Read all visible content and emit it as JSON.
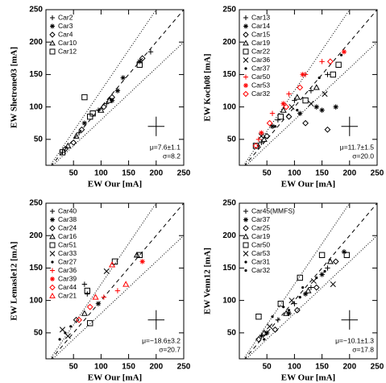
{
  "chart_data": [
    {
      "type": "scatter",
      "x_label": "EW Our [mA]",
      "y_label": "EW Shetrone03 [mA]",
      "xlim": [
        0,
        250
      ],
      "ylim": [
        10,
        250
      ],
      "xticks": [
        50,
        100,
        150,
        200,
        250
      ],
      "yticks": [
        50,
        100,
        150,
        200,
        250
      ],
      "annotations": [
        "μ=7.6±1.1",
        "σ=8.2"
      ],
      "error_bar": {
        "x": 200,
        "y": 70,
        "xerr": 15,
        "yerr": 15
      },
      "series": [
        {
          "name": "Car2",
          "color": "#000000",
          "marker": "plus",
          "x": [
            30,
            60,
            95,
            110,
            190
          ],
          "values": [
            30,
            60,
            95,
            105,
            185
          ]
        },
        {
          "name": "Car3",
          "color": "#000000",
          "marker": "asterisk",
          "x": [
            70,
            130,
            140,
            170,
            120
          ],
          "values": [
            75,
            125,
            145,
            170,
            110
          ]
        },
        {
          "name": "Car4",
          "color": "#000000",
          "marker": "diamond",
          "x": [
            35,
            50,
            65,
            105,
            120,
            175
          ],
          "values": [
            35,
            45,
            65,
            100,
            115,
            175
          ]
        },
        {
          "name": "Car10",
          "color": "#000000",
          "marker": "triangle",
          "x": [
            40,
            55,
            100,
            115
          ],
          "values": [
            40,
            55,
            95,
            110
          ]
        },
        {
          "name": "Car12",
          "color": "#000000",
          "marker": "square",
          "x": [
            70,
            80,
            85,
            170,
            30
          ],
          "values": [
            115,
            85,
            90,
            165,
            30
          ]
        }
      ]
    },
    {
      "type": "scatter",
      "x_label": "EW Our [mA]",
      "y_label": "EW Koch08 [mA]",
      "xlim": [
        0,
        250
      ],
      "ylim": [
        10,
        250
      ],
      "xticks": [
        50,
        100,
        150,
        200,
        250
      ],
      "yticks": [
        50,
        100,
        150,
        200,
        250
      ],
      "annotations": [
        "μ=11.7±1.5",
        "σ=20.0"
      ],
      "error_bar": {
        "x": 200,
        "y": 70,
        "xerr": 15,
        "yerr": 15
      },
      "series": [
        {
          "name": "Car13",
          "color": "#000000",
          "marker": "plus",
          "x": [
            40,
            70,
            100,
            130,
            160
          ],
          "values": [
            45,
            80,
            110,
            125,
            150
          ]
        },
        {
          "name": "Car14",
          "color": "#000000",
          "marker": "asterisk",
          "x": [
            60,
            110,
            140,
            150,
            175
          ],
          "values": [
            70,
            90,
            100,
            95,
            100
          ]
        },
        {
          "name": "Car15",
          "color": "#000000",
          "marker": "diamond",
          "x": [
            50,
            90,
            120,
            160
          ],
          "values": [
            55,
            85,
            75,
            65
          ]
        },
        {
          "name": "Car19",
          "color": "#000000",
          "marker": "triangle",
          "x": [
            45,
            80,
            105,
            140
          ],
          "values": [
            50,
            95,
            115,
            130
          ]
        },
        {
          "name": "Car22",
          "color": "#000000",
          "marker": "square",
          "x": [
            30,
            75,
            120,
            170,
            180
          ],
          "values": [
            40,
            85,
            110,
            150,
            165
          ]
        },
        {
          "name": "Car36",
          "color": "#000000",
          "marker": "x",
          "x": [
            40,
            95,
            130,
            155
          ],
          "values": [
            55,
            100,
            105,
            120
          ]
        },
        {
          "name": "Car37",
          "color": "#000000",
          "marker": "dot",
          "x": [
            35,
            65,
            105,
            145,
            185
          ],
          "values": [
            40,
            70,
            95,
            145,
            180
          ]
        },
        {
          "name": "Car50",
          "color": "#ff0000",
          "marker": "plus",
          "x": [
            35,
            60,
            90,
            120,
            150
          ],
          "values": [
            50,
            90,
            120,
            150,
            170
          ]
        },
        {
          "name": "Car53",
          "color": "#ff0000",
          "marker": "asterisk",
          "x": [
            40,
            80,
            115,
            190
          ],
          "values": [
            60,
            105,
            150,
            185
          ]
        },
        {
          "name": "Car32",
          "color": "#ff0000",
          "marker": "diamond",
          "x": [
            30,
            55,
            85,
            110,
            165
          ],
          "values": [
            40,
            75,
            100,
            130,
            170
          ]
        }
      ]
    },
    {
      "type": "scatter",
      "x_label": "EW Our [mA]",
      "y_label": "EW Lemasle12 [mA]",
      "xlim": [
        0,
        250
      ],
      "ylim": [
        10,
        250
      ],
      "xticks": [
        50,
        100,
        150,
        200,
        250
      ],
      "yticks": [
        50,
        100,
        150,
        200,
        250
      ],
      "annotations": [
        "μ=−18.6±3.2",
        "σ=20.7"
      ],
      "error_bar": {
        "x": 200,
        "y": 70,
        "xerr": 15,
        "yerr": 15
      },
      "series": [
        {
          "name": "Car40",
          "color": "#000000",
          "marker": "plus",
          "x": [
            70,
            75
          ],
          "values": [
            125,
            110
          ]
        },
        {
          "name": "Car38",
          "color": "#000000",
          "marker": "asterisk",
          "x": [
            95
          ],
          "values": [
            95
          ]
        },
        {
          "name": "Car24",
          "color": "#000000",
          "marker": "diamond",
          "x": [
            55
          ],
          "values": [
            70
          ]
        },
        {
          "name": "Car16",
          "color": "#000000",
          "marker": "triangle",
          "x": [
            70,
            165
          ],
          "values": [
            80,
            170
          ]
        },
        {
          "name": "Car51",
          "color": "#000000",
          "marker": "square",
          "x": [
            75,
            80,
            125,
            170
          ],
          "values": [
            115,
            65,
            160,
            170
          ]
        },
        {
          "name": "Car33",
          "color": "#000000",
          "marker": "x",
          "x": [
            30,
            40,
            110
          ],
          "values": [
            55,
            45,
            145
          ]
        },
        {
          "name": "Car27",
          "color": "#000000",
          "marker": "dot",
          "x": [
            25,
            35,
            45
          ],
          "values": [
            40,
            50,
            60
          ]
        },
        {
          "name": "Car36",
          "color": "#ff0000",
          "marker": "plus",
          "x": [
            105,
            130
          ],
          "values": [
            105,
            115
          ]
        },
        {
          "name": "Car39",
          "color": "#ff0000",
          "marker": "asterisk",
          "x": [
            175
          ],
          "values": [
            160
          ]
        },
        {
          "name": "Car44",
          "color": "#ff0000",
          "marker": "diamond",
          "x": [
            60,
            80
          ],
          "values": [
            70,
            90
          ]
        },
        {
          "name": "Car21",
          "color": "#ff0000",
          "marker": "triangle",
          "x": [
            90,
            120,
            145
          ],
          "values": [
            105,
            155,
            125
          ]
        }
      ]
    },
    {
      "type": "scatter",
      "x_label": "EW Our [mA]",
      "y_label": "EW Venn12 [mA]",
      "xlim": [
        0,
        250
      ],
      "ylim": [
        10,
        250
      ],
      "xticks": [
        50,
        100,
        150,
        200,
        250
      ],
      "yticks": [
        50,
        100,
        150,
        200,
        250
      ],
      "annotations": [
        "μ=−10.1±1.3",
        "σ=17.8"
      ],
      "error_bar": {
        "x": 200,
        "y": 70,
        "xerr": 15,
        "yerr": 15
      },
      "series": [
        {
          "name": "Car45(MMFS)",
          "color": "#000000",
          "marker": "plus",
          "x": [
            40,
            70,
            100,
            130,
            160
          ],
          "values": [
            45,
            70,
            95,
            120,
            150
          ]
        },
        {
          "name": "Car37",
          "color": "#000000",
          "marker": "asterisk",
          "x": [
            50,
            90,
            120,
            150,
            190
          ],
          "values": [
            50,
            80,
            110,
            140,
            175
          ]
        },
        {
          "name": "Car25",
          "color": "#000000",
          "marker": "diamond",
          "x": [
            35,
            65,
            105,
            140,
            175
          ],
          "values": [
            40,
            55,
            85,
            120,
            160
          ]
        },
        {
          "name": "Car19",
          "color": "#000000",
          "marker": "triangle",
          "x": [
            45,
            85,
            125,
            165
          ],
          "values": [
            50,
            80,
            115,
            160
          ]
        },
        {
          "name": "Car50",
          "color": "#000000",
          "marker": "square",
          "x": [
            35,
            75,
            110,
            150,
            195
          ],
          "values": [
            75,
            95,
            135,
            170,
            170
          ]
        },
        {
          "name": "Car53",
          "color": "#000000",
          "marker": "x",
          "x": [
            55,
            95,
            135,
            170
          ],
          "values": [
            60,
            100,
            130,
            125
          ]
        },
        {
          "name": "Car31",
          "color": "#000000",
          "marker": "dot",
          "x": [
            40,
            60,
            80,
            110,
            140
          ],
          "values": [
            45,
            75,
            90,
            105,
            135
          ]
        },
        {
          "name": "Car32",
          "color": "#000000",
          "marker": "dot",
          "x": [
            45,
            90,
            115,
            155
          ],
          "values": [
            40,
            85,
            120,
            145
          ]
        }
      ]
    }
  ]
}
